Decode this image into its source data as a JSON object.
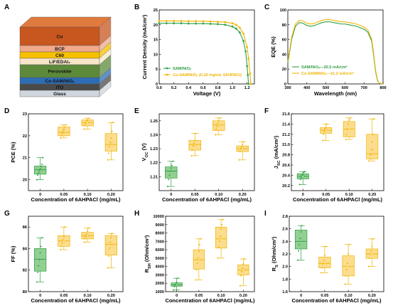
{
  "panels": {
    "a": "A",
    "b": "B",
    "c": "C",
    "d": "D",
    "e": "E",
    "f": "F",
    "g": "G",
    "h": "H",
    "i": "I"
  },
  "stack": {
    "layers": [
      {
        "label": "Cu",
        "color": "#c8561f"
      },
      {
        "label": "BCP",
        "color": "#f0a98a"
      },
      {
        "label": "C60",
        "color": "#f6c000"
      },
      {
        "label": "LiF/EDAI₂",
        "color": "#f7e6c8"
      },
      {
        "label": "Perovskite",
        "color": "#5c8a3a"
      },
      {
        "label": "Co-SAM/NiOₓ",
        "color": "#2d6db5"
      },
      {
        "label": "ITO",
        "color": "#4a4a4a"
      },
      {
        "label": "Glass",
        "color": "#cfd6dd"
      }
    ]
  },
  "colors": {
    "green": "#2ea043",
    "green_fill": "#7fc77f",
    "yellow": "#f0b400",
    "yellow_fill": "#fbd77a"
  },
  "chart_data": [
    {
      "id": "jv",
      "type": "line",
      "xlabel": "Voltage (V)",
      "ylabel": "Current Density (mA/cm²)",
      "xlim": [
        0.0,
        1.3
      ],
      "ylim": [
        0,
        25
      ],
      "xticks": [
        0.0,
        0.2,
        0.4,
        0.6,
        0.8,
        1.0,
        1.2
      ],
      "yticks": [
        0,
        5,
        10,
        15,
        20,
        25
      ],
      "series": [
        {
          "name": "SAM/NiOₓ",
          "color": "green",
          "marker": "diamond",
          "x": [
            0.0,
            0.1,
            0.2,
            0.3,
            0.4,
            0.5,
            0.6,
            0.7,
            0.8,
            0.9,
            1.0,
            1.05,
            1.1,
            1.15,
            1.18,
            1.2,
            1.21,
            1.22
          ],
          "y": [
            20.5,
            20.5,
            20.5,
            20.5,
            20.4,
            20.4,
            20.4,
            20.3,
            20.2,
            20.0,
            19.4,
            18.7,
            17.4,
            14.5,
            11.0,
            6.0,
            3.0,
            0.0
          ]
        },
        {
          "name": "Co-SAM/NiOₓ (0.10 mg/mL 6AHPACl)",
          "color": "yellow",
          "marker": "circle",
          "x": [
            0.0,
            0.1,
            0.2,
            0.3,
            0.4,
            0.5,
            0.6,
            0.7,
            0.8,
            0.9,
            1.0,
            1.05,
            1.1,
            1.15,
            1.2,
            1.22,
            1.24,
            1.25
          ],
          "y": [
            21.3,
            21.3,
            21.3,
            21.3,
            21.2,
            21.2,
            21.2,
            21.1,
            21.0,
            20.9,
            20.5,
            20.0,
            19.0,
            17.0,
            12.5,
            8.5,
            3.5,
            0.0
          ]
        }
      ]
    },
    {
      "id": "eqe",
      "type": "line",
      "xlabel": "Wavelength (nm)",
      "ylabel": "EQE (%)",
      "xlim": [
        300,
        800
      ],
      "ylim": [
        0,
        100
      ],
      "xticks": [
        300,
        400,
        500,
        600,
        700,
        800
      ],
      "yticks": [
        0,
        20,
        40,
        60,
        80,
        100
      ],
      "series": [
        {
          "name": "SAM/NiOₓ—20.5 mA/cm²",
          "color": "green",
          "x": [
            300,
            320,
            340,
            360,
            380,
            400,
            420,
            440,
            460,
            480,
            500,
            520,
            540,
            560,
            580,
            600,
            620,
            640,
            660,
            680,
            700,
            720,
            740,
            750,
            760,
            770,
            780,
            800
          ],
          "y": [
            28,
            60,
            78,
            83,
            82,
            79,
            78,
            79,
            81,
            83,
            84,
            84,
            83,
            82,
            81,
            81,
            80,
            79,
            78,
            76,
            74,
            70,
            58,
            40,
            18,
            5,
            1,
            0
          ]
        },
        {
          "name": "Co-SAM/NiOₓ—21.2 mA/cm²",
          "color": "yellow",
          "x": [
            300,
            320,
            340,
            360,
            380,
            400,
            420,
            440,
            460,
            480,
            500,
            520,
            540,
            560,
            580,
            600,
            620,
            640,
            660,
            680,
            700,
            720,
            740,
            750,
            760,
            770,
            780,
            800
          ],
          "y": [
            30,
            63,
            81,
            86,
            85,
            82,
            81,
            82,
            84,
            86,
            87,
            87,
            86,
            85,
            84,
            84,
            83,
            82,
            81,
            79,
            77,
            73,
            61,
            43,
            20,
            6,
            1,
            0
          ]
        }
      ]
    },
    {
      "id": "pce",
      "type": "box",
      "xlabel": "Concentration of 6AHPACl (mg/mL)",
      "ylabel": "PCE (%)",
      "categories": [
        "0",
        "0.05",
        "0.10",
        "0.20"
      ],
      "ylim": [
        19.5,
        23
      ],
      "yticks": [
        20,
        21,
        22,
        23
      ],
      "boxes": [
        {
          "q1": 20.25,
          "median": 20.45,
          "mean": 20.4,
          "q3": 20.62,
          "whisker_low": 20.0,
          "whisker_high": 21.0,
          "points": [
            20.0,
            20.2,
            20.3,
            20.4,
            20.5,
            20.6,
            20.7,
            21.0
          ]
        },
        {
          "q1": 22.0,
          "median": 22.15,
          "mean": 22.2,
          "q3": 22.4,
          "whisker_low": 21.9,
          "whisker_high": 22.5,
          "points": [
            21.9,
            22.0,
            22.1,
            22.2,
            22.3,
            22.4,
            22.5
          ]
        },
        {
          "q1": 22.45,
          "median": 22.6,
          "mean": 22.6,
          "q3": 22.72,
          "whisker_low": 22.3,
          "whisker_high": 22.8,
          "points": [
            22.3,
            22.5,
            22.6,
            22.7,
            22.7,
            22.8
          ]
        },
        {
          "q1": 21.3,
          "median": 21.6,
          "mean": 21.7,
          "q3": 22.1,
          "whisker_low": 20.9,
          "whisker_high": 22.6,
          "points": [
            20.9,
            21.2,
            21.5,
            21.7,
            21.9,
            22.2,
            22.6
          ]
        }
      ]
    },
    {
      "id": "voc",
      "type": "box",
      "xlabel": "Concentration of 6AHPACl (mg/mL)",
      "ylabel": "V_OC (V)",
      "categories": [
        "0",
        "0.05",
        "0.10",
        "0.20"
      ],
      "ylim": [
        1.2,
        1.255
      ],
      "yticks": [
        1.21,
        1.22,
        1.23,
        1.24,
        1.25
      ],
      "boxes": [
        {
          "q1": 1.209,
          "median": 1.214,
          "mean": 1.213,
          "q3": 1.217,
          "whisker_low": 1.203,
          "whisker_high": 1.221,
          "points": [
            1.203,
            1.208,
            1.211,
            1.214,
            1.216,
            1.218,
            1.221
          ]
        },
        {
          "q1": 1.229,
          "median": 1.233,
          "mean": 1.232,
          "q3": 1.236,
          "whisker_low": 1.225,
          "whisker_high": 1.241,
          "points": [
            1.225,
            1.229,
            1.232,
            1.234,
            1.236,
            1.241
          ]
        },
        {
          "q1": 1.243,
          "median": 1.247,
          "mean": 1.247,
          "q3": 1.25,
          "whisker_low": 1.24,
          "whisker_high": 1.252,
          "points": [
            1.24,
            1.244,
            1.246,
            1.248,
            1.25,
            1.252
          ]
        },
        {
          "q1": 1.228,
          "median": 1.23,
          "mean": 1.23,
          "q3": 1.232,
          "whisker_low": 1.222,
          "whisker_high": 1.235,
          "points": [
            1.222,
            1.228,
            1.23,
            1.231,
            1.233,
            1.235
          ]
        }
      ]
    },
    {
      "id": "jsc",
      "type": "box",
      "xlabel": "Concentration of 6AHPACl (mg/mL)",
      "ylabel": "J_SC (mA/cm²)",
      "categories": [
        "0",
        "0.05",
        "0.10",
        "0.20"
      ],
      "ylim": [
        20.1,
        21.6
      ],
      "yticks": [
        20.2,
        20.4,
        20.6,
        20.8,
        21.0,
        21.2,
        21.4,
        21.6
      ],
      "boxes": [
        {
          "q1": 20.33,
          "median": 20.38,
          "mean": 20.38,
          "q3": 20.43,
          "whisker_low": 20.22,
          "whisker_high": 20.47,
          "points": [
            20.22,
            20.32,
            20.36,
            20.4,
            20.42,
            20.46,
            20.47
          ]
        },
        {
          "q1": 21.22,
          "median": 21.28,
          "mean": 21.28,
          "q3": 21.33,
          "whisker_low": 21.08,
          "whisker_high": 21.4,
          "points": [
            21.08,
            21.2,
            21.26,
            21.3,
            21.33,
            21.4
          ]
        },
        {
          "q1": 21.15,
          "median": 21.3,
          "mean": 21.3,
          "q3": 21.45,
          "whisker_low": 21.1,
          "whisker_high": 21.52,
          "points": [
            21.1,
            21.2,
            21.3,
            21.4,
            21.48,
            21.52
          ]
        },
        {
          "q1": 20.72,
          "median": 20.82,
          "mean": 20.9,
          "q3": 21.2,
          "whisker_low": 20.68,
          "whisker_high": 21.5,
          "points": [
            20.68,
            20.72,
            20.8,
            20.9,
            21.05,
            21.2,
            21.5
          ]
        }
      ]
    },
    {
      "id": "ff",
      "type": "box",
      "xlabel": "Concentration of 6AHPACl (mg/mL)",
      "ylabel": "FF (%)",
      "categories": [
        "0",
        "0.05",
        "0.10",
        "0.20"
      ],
      "ylim": [
        80,
        87
      ],
      "yticks": [
        80,
        82,
        84,
        86
      ],
      "boxes": [
        {
          "q1": 81.9,
          "median": 83.0,
          "mean": 82.8,
          "q3": 84.0,
          "whisker_low": 80.9,
          "whisker_high": 85.0,
          "points": [
            80.9,
            81.8,
            82.4,
            83.0,
            83.6,
            84.2,
            85.0
          ]
        },
        {
          "q1": 84.2,
          "median": 84.7,
          "mean": 84.7,
          "q3": 85.2,
          "whisker_low": 83.9,
          "whisker_high": 86.0,
          "points": [
            83.9,
            84.2,
            84.5,
            84.8,
            85.1,
            86.0
          ]
        },
        {
          "q1": 84.9,
          "median": 85.2,
          "mean": 85.2,
          "q3": 85.5,
          "whisker_low": 84.6,
          "whisker_high": 85.9,
          "points": [
            84.6,
            84.9,
            85.1,
            85.3,
            85.6,
            85.9
          ]
        },
        {
          "q1": 83.4,
          "median": 84.4,
          "mean": 84.2,
          "q3": 85.2,
          "whisker_low": 82.2,
          "whisker_high": 85.4,
          "points": [
            82.2,
            83.3,
            84.0,
            84.6,
            85.0,
            85.4
          ]
        }
      ]
    },
    {
      "id": "rsh",
      "type": "box",
      "xlabel": "Concentration of 6AHPACl (mg/mL)",
      "ylabel": "R_SH (Ohm/cm²)",
      "categories": [
        "0",
        "0.05",
        "0.10",
        "0.20"
      ],
      "ylim": [
        1000,
        10000
      ],
      "yticks": [
        1000,
        2000,
        3000,
        4000,
        5000,
        6000,
        7000,
        8000,
        9000,
        10000
      ],
      "boxes": [
        {
          "q1": 1650,
          "median": 1800,
          "mean": 1850,
          "q3": 2050,
          "whisker_low": 1200,
          "whisker_high": 2600,
          "points": [
            1200,
            1600,
            1800,
            1900,
            2100,
            2600
          ]
        },
        {
          "q1": 3700,
          "median": 4800,
          "mean": 4900,
          "q3": 6000,
          "whisker_low": 2400,
          "whisker_high": 7300,
          "points": [
            2400,
            3600,
            4400,
            5000,
            5800,
            6600,
            7300
          ]
        },
        {
          "q1": 6200,
          "median": 7300,
          "mean": 7400,
          "q3": 8700,
          "whisker_low": 5000,
          "whisker_high": 9600,
          "points": [
            5000,
            6300,
            7000,
            7600,
            8500,
            9000,
            9600
          ]
        },
        {
          "q1": 3000,
          "median": 3600,
          "mean": 3650,
          "q3": 4200,
          "whisker_low": 1700,
          "whisker_high": 4900,
          "points": [
            1700,
            2900,
            3400,
            3800,
            4300,
            4900
          ]
        }
      ]
    },
    {
      "id": "rs",
      "type": "box",
      "xlabel": "Concentration of 6AHPACl (mg/mL)",
      "ylabel": "R_S (Ohm/cm²)",
      "categories": [
        "0",
        "0.05",
        "0.10",
        "0.20"
      ],
      "ylim": [
        1.6,
        2.8
      ],
      "yticks": [
        1.6,
        1.8,
        2.0,
        2.2,
        2.4,
        2.6,
        2.8
      ],
      "boxes": [
        {
          "q1": 2.28,
          "median": 2.4,
          "mean": 2.42,
          "q3": 2.58,
          "whisker_low": 2.1,
          "whisker_high": 2.65,
          "points": [
            2.1,
            2.25,
            2.35,
            2.45,
            2.55,
            2.65
          ]
        },
        {
          "q1": 1.98,
          "median": 2.05,
          "mean": 2.06,
          "q3": 2.15,
          "whisker_low": 1.9,
          "whisker_high": 2.32,
          "points": [
            1.9,
            1.98,
            2.04,
            2.1,
            2.18,
            2.32
          ]
        },
        {
          "q1": 1.85,
          "median": 2.0,
          "mean": 2.0,
          "q3": 2.17,
          "whisker_low": 1.72,
          "whisker_high": 2.35,
          "points": [
            1.72,
            1.85,
            1.95,
            2.05,
            2.2,
            2.35
          ]
        },
        {
          "q1": 2.13,
          "median": 2.2,
          "mean": 2.2,
          "q3": 2.28,
          "whisker_low": 2.0,
          "whisker_high": 2.44,
          "points": [
            2.0,
            2.13,
            2.2,
            2.25,
            2.32,
            2.44
          ]
        }
      ]
    }
  ]
}
